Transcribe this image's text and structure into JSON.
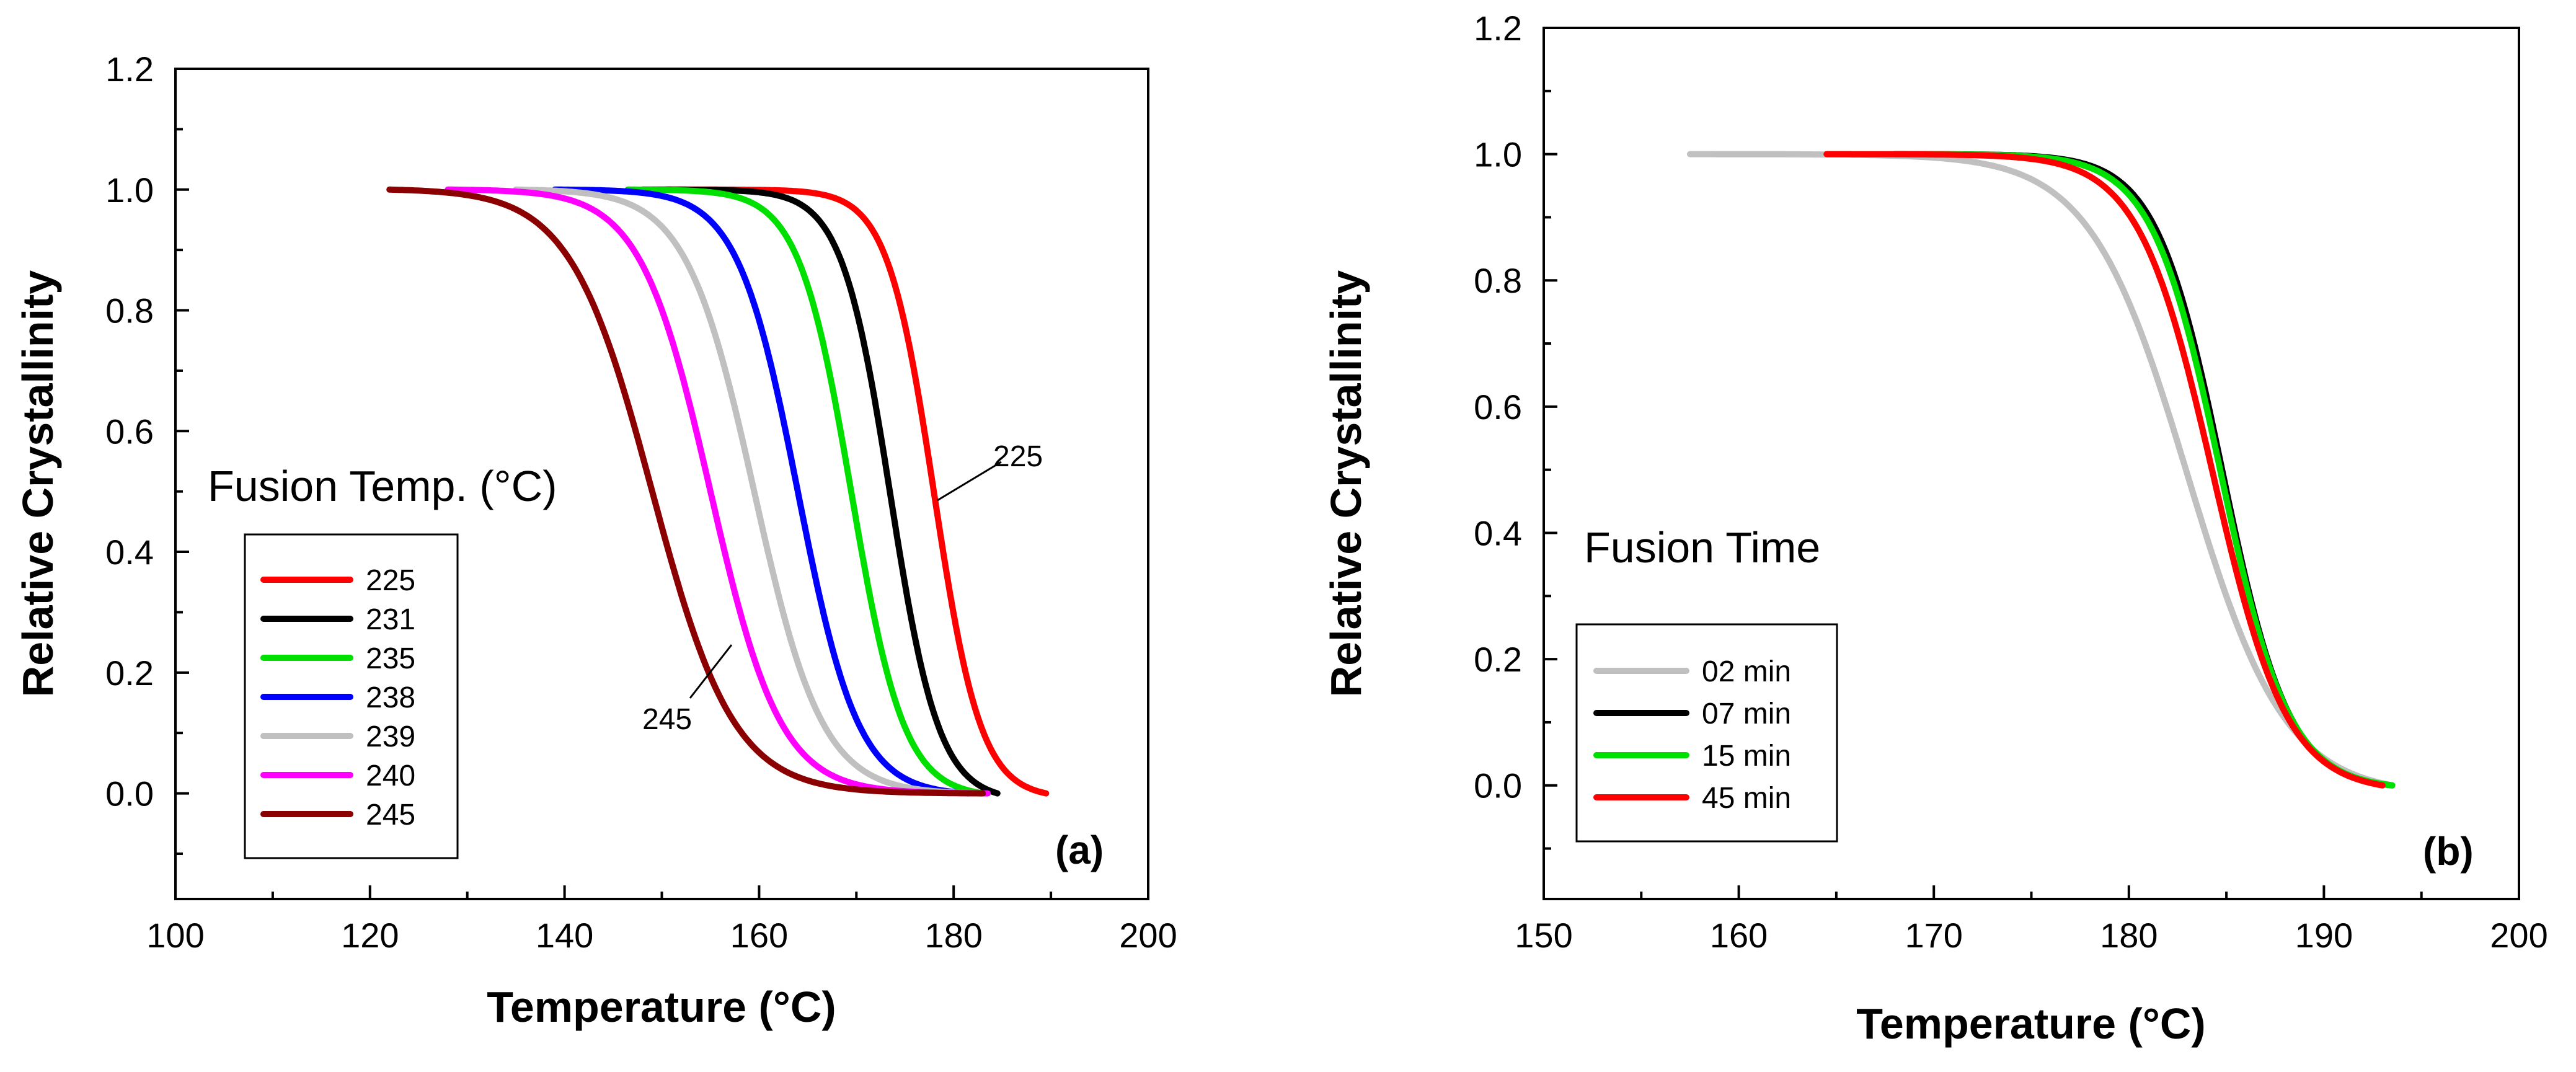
{
  "chart_data": [
    {
      "type": "line",
      "panel_label": "(a)",
      "xlabel": "Temperature (°C)",
      "ylabel": "Relative Crystallinity",
      "xlim": [
        100,
        200
      ],
      "ylim": [
        -0.175,
        1.2
      ],
      "xticks": [
        "100",
        "120",
        "140",
        "160",
        "180",
        "200"
      ],
      "yticks": [
        "0.0",
        "0.2",
        "0.4",
        "0.6",
        "0.8",
        "1.0",
        "1.2"
      ],
      "legend_title": "Fusion Temp. (°C)",
      "legend_position": "center-left",
      "annotations": [
        "225",
        "245"
      ],
      "series": [
        {
          "name": "225",
          "color": "#ff0000",
          "start": 150.5,
          "end": 189.5,
          "midpoint": 178.0,
          "width": 2.4
        },
        {
          "name": "231",
          "color": "#000000",
          "start": 148.0,
          "end": 184.5,
          "midpoint": 173.5,
          "width": 2.5
        },
        {
          "name": "235",
          "color": "#00e000",
          "start": 146.5,
          "end": 183.0,
          "midpoint": 169.5,
          "width": 2.7
        },
        {
          "name": "238",
          "color": "#0000ff",
          "start": 139.0,
          "end": 181.5,
          "midpoint": 164.0,
          "width": 3.1
        },
        {
          "name": "239",
          "color": "#c0c0c0",
          "start": 135.0,
          "end": 182.5,
          "midpoint": 159.5,
          "width": 3.5
        },
        {
          "name": "240",
          "color": "#ff00ff",
          "start": 128.0,
          "end": 183.5,
          "midpoint": 155.0,
          "width": 3.6
        },
        {
          "name": "245",
          "color": "#8b0000",
          "start": 122.0,
          "end": 183.0,
          "midpoint": 149.0,
          "width": 4.2
        }
      ]
    },
    {
      "type": "line",
      "panel_label": "(b)",
      "xlabel": "Temperature (°C)",
      "ylabel": "Relative Crystallinity",
      "xlim": [
        150,
        200
      ],
      "ylim": [
        -0.18,
        1.2
      ],
      "xticks": [
        "150",
        "160",
        "170",
        "180",
        "190",
        "200"
      ],
      "yticks": [
        "0.0",
        "0.2",
        "0.4",
        "0.6",
        "0.8",
        "1.0",
        "1.2"
      ],
      "legend_title": "Fusion Time",
      "legend_position": "center-left",
      "series": [
        {
          "name": "02 min",
          "color": "#c0c0c0",
          "start": 157.5,
          "end": 193.5,
          "midpoint": 183.0,
          "width": 2.5
        },
        {
          "name": "07 min",
          "color": "#000000",
          "start": 168.0,
          "end": 193.5,
          "midpoint": 184.8,
          "width": 1.7
        },
        {
          "name": "15 min",
          "color": "#00e000",
          "start": 168.5,
          "end": 193.5,
          "midpoint": 184.7,
          "width": 1.75
        },
        {
          "name": "45 min",
          "color": "#ff0000",
          "start": 164.5,
          "end": 193.0,
          "midpoint": 184.3,
          "width": 1.9
        }
      ]
    }
  ]
}
